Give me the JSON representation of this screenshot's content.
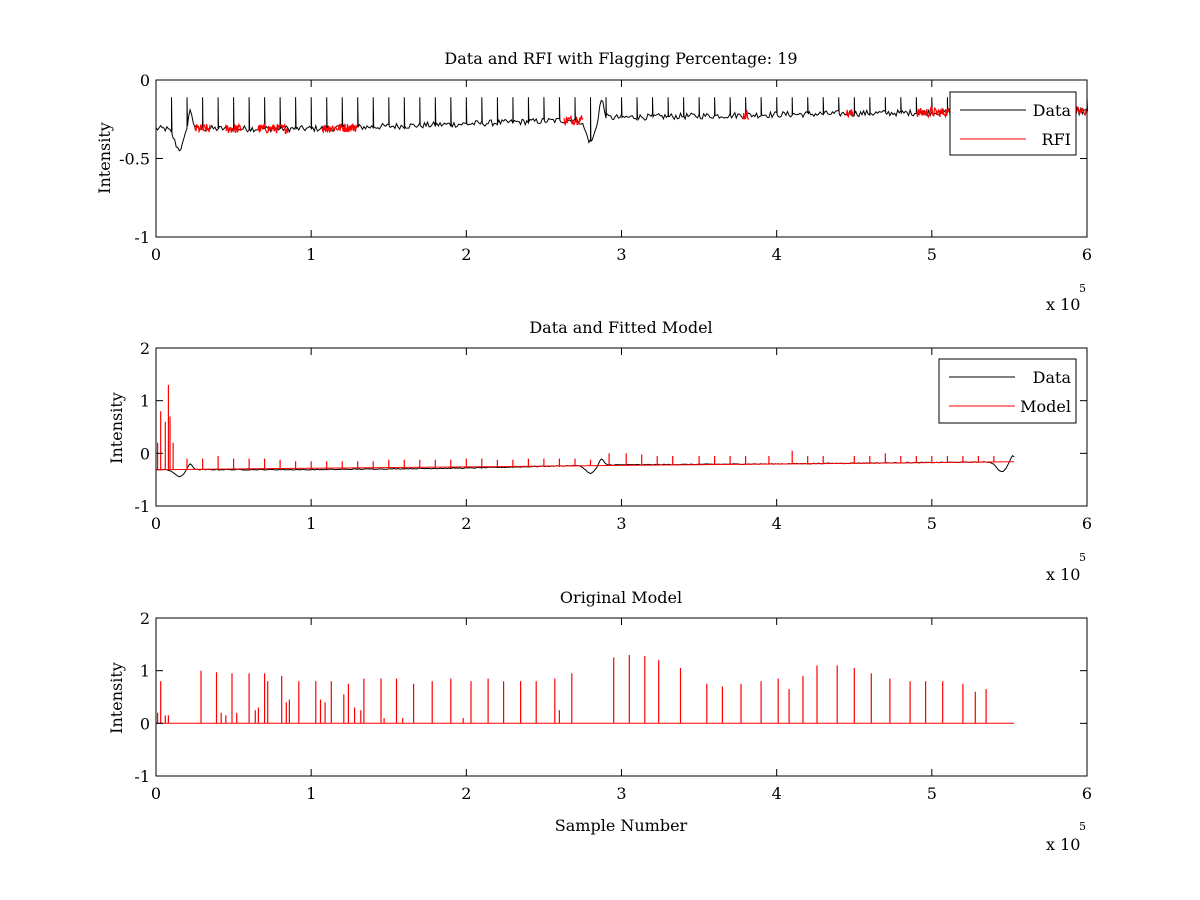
{
  "chart_data": [
    {
      "type": "line",
      "title": "Data and RFI with Flagging Percentage: 19",
      "xlabel": "",
      "ylabel": "Intensity",
      "xlim": [
        0,
        600000
      ],
      "ylim": [
        -1,
        0
      ],
      "xticks": [
        0,
        1,
        2,
        3,
        4,
        5,
        6
      ],
      "xtick_labels": [
        "0",
        "1",
        "2",
        "3",
        "4",
        "5",
        "6"
      ],
      "yticks": [
        -1,
        -0.5,
        0
      ],
      "ytick_labels": [
        "-1",
        "-0.5",
        "0"
      ],
      "x_multiplier_base": "x 10",
      "x_multiplier_exp": "5",
      "legend": {
        "location": "top-right",
        "entries": [
          {
            "label": "Data",
            "color": "#000000"
          },
          {
            "label": "RFI",
            "color": "#ff0000"
          }
        ]
      },
      "series": [
        {
          "name": "Data",
          "color": "#000000",
          "baseline": [
            [
              0,
              -0.31
            ],
            [
              100000,
              -0.31
            ],
            [
              200000,
              -0.28
            ],
            [
              280000,
              -0.25
            ],
            [
              290000,
              -0.24
            ],
            [
              400000,
              -0.22
            ],
            [
              550000,
              -0.2
            ],
            [
              600000,
              -0.2
            ]
          ],
          "dips": [
            {
              "x": 15000,
              "y": -0.44
            },
            {
              "x": 280000,
              "y": -0.39
            }
          ],
          "spike_top": -0.11
        },
        {
          "name": "RFI",
          "color": "#ff0000",
          "flagged_ranges": [
            [
              25000,
              35000
            ],
            [
              45000,
              55000
            ],
            [
              65000,
              85000
            ],
            [
              107000,
              130000
            ],
            [
              263000,
              275000
            ],
            [
              378000,
              382000
            ],
            [
              445000,
              450000
            ],
            [
              490000,
              600000
            ]
          ]
        }
      ]
    },
    {
      "type": "line",
      "title": "Data and Fitted Model",
      "xlabel": "",
      "ylabel": "Intensity",
      "xlim": [
        0,
        600000
      ],
      "ylim": [
        -1,
        2
      ],
      "xticks": [
        0,
        1,
        2,
        3,
        4,
        5,
        6
      ],
      "xtick_labels": [
        "0",
        "1",
        "2",
        "3",
        "4",
        "5",
        "6"
      ],
      "yticks": [
        -1,
        0,
        1,
        2
      ],
      "ytick_labels": [
        "-1",
        "0",
        "1",
        "2"
      ],
      "x_multiplier_base": "x 10",
      "x_multiplier_exp": "5",
      "legend": {
        "location": "top-right",
        "entries": [
          {
            "label": "Data",
            "color": "#000000"
          },
          {
            "label": "Model",
            "color": "#ff0000"
          }
        ]
      },
      "series": [
        {
          "name": "Data",
          "color": "#000000",
          "baseline": [
            [
              0,
              -0.31
            ],
            [
              100000,
              -0.31
            ],
            [
              200000,
              -0.28
            ],
            [
              290000,
              -0.22
            ],
            [
              400000,
              -0.2
            ],
            [
              553000,
              -0.16
            ]
          ],
          "dips": [
            {
              "x": 15000,
              "y": -0.44
            },
            {
              "x": 280000,
              "y": -0.38
            },
            {
              "x": 545000,
              "y": -0.35
            }
          ]
        },
        {
          "name": "Model",
          "color": "#ff0000",
          "peaks": [
            [
              1000,
              0.2
            ],
            [
              3000,
              0.8
            ],
            [
              6000,
              0.6
            ],
            [
              8000,
              1.3
            ],
            [
              9000,
              0.7
            ],
            [
              11000,
              0.2
            ],
            [
              20000,
              -0.1
            ],
            [
              30000,
              -0.1
            ],
            [
              40000,
              -0.05
            ],
            [
              50000,
              -0.1
            ],
            [
              60000,
              -0.1
            ],
            [
              70000,
              -0.1
            ],
            [
              80000,
              -0.12
            ],
            [
              90000,
              -0.15
            ],
            [
              100000,
              -0.15
            ],
            [
              110000,
              -0.15
            ],
            [
              120000,
              -0.15
            ],
            [
              130000,
              -0.15
            ],
            [
              140000,
              -0.15
            ],
            [
              150000,
              -0.12
            ],
            [
              160000,
              -0.12
            ],
            [
              170000,
              -0.12
            ],
            [
              180000,
              -0.12
            ],
            [
              190000,
              -0.12
            ],
            [
              200000,
              -0.1
            ],
            [
              210000,
              -0.1
            ],
            [
              220000,
              -0.12
            ],
            [
              230000,
              -0.12
            ],
            [
              240000,
              -0.1
            ],
            [
              250000,
              -0.1
            ],
            [
              260000,
              -0.1
            ],
            [
              270000,
              -0.1
            ],
            [
              280000,
              -0.12
            ],
            [
              292000,
              0.0
            ],
            [
              303000,
              0.0
            ],
            [
              313000,
              -0.02
            ],
            [
              323000,
              -0.05
            ],
            [
              333000,
              -0.05
            ],
            [
              350000,
              -0.05
            ],
            [
              360000,
              -0.05
            ],
            [
              370000,
              -0.05
            ],
            [
              380000,
              -0.05
            ],
            [
              395000,
              -0.05
            ],
            [
              410000,
              0.05
            ],
            [
              420000,
              -0.05
            ],
            [
              430000,
              -0.05
            ],
            [
              450000,
              -0.05
            ],
            [
              460000,
              -0.05
            ],
            [
              470000,
              0.0
            ],
            [
              480000,
              -0.05
            ],
            [
              490000,
              -0.05
            ],
            [
              500000,
              -0.05
            ],
            [
              510000,
              -0.05
            ],
            [
              520000,
              -0.05
            ],
            [
              530000,
              -0.05
            ],
            [
              540000,
              -0.05
            ]
          ]
        }
      ]
    },
    {
      "type": "line",
      "title": "Original Model",
      "xlabel": "Sample Number",
      "ylabel": "Intensity",
      "xlim": [
        0,
        600000
      ],
      "ylim": [
        -1,
        2
      ],
      "xticks": [
        0,
        1,
        2,
        3,
        4,
        5,
        6
      ],
      "xtick_labels": [
        "0",
        "1",
        "2",
        "3",
        "4",
        "5",
        "6"
      ],
      "yticks": [
        -1,
        0,
        1,
        2
      ],
      "ytick_labels": [
        "-1",
        "0",
        "1",
        "2"
      ],
      "x_multiplier_base": "x 10",
      "x_multiplier_exp": "5",
      "legend": null,
      "series": [
        {
          "name": "",
          "color": "#ff0000",
          "baseline": [
            [
              0,
              0
            ],
            [
              553000,
              0
            ]
          ],
          "peaks": [
            [
              1000,
              0.2
            ],
            [
              3000,
              0.8
            ],
            [
              6000,
              0.15
            ],
            [
              8000,
              0.15
            ],
            [
              29000,
              1.0
            ],
            [
              39000,
              0.97
            ],
            [
              42000,
              0.2
            ],
            [
              45000,
              0.15
            ],
            [
              49000,
              0.95
            ],
            [
              52000,
              0.2
            ],
            [
              60000,
              0.95
            ],
            [
              64000,
              0.25
            ],
            [
              66000,
              0.3
            ],
            [
              70000,
              0.95
            ],
            [
              72000,
              0.8
            ],
            [
              81000,
              0.9
            ],
            [
              84000,
              0.4
            ],
            [
              86000,
              0.45
            ],
            [
              92000,
              0.8
            ],
            [
              103000,
              0.8
            ],
            [
              106000,
              0.45
            ],
            [
              109000,
              0.4
            ],
            [
              113000,
              0.8
            ],
            [
              121000,
              0.55
            ],
            [
              124000,
              0.75
            ],
            [
              128000,
              0.3
            ],
            [
              132000,
              0.25
            ],
            [
              134000,
              0.85
            ],
            [
              145000,
              0.85
            ],
            [
              147000,
              0.1
            ],
            [
              155000,
              0.85
            ],
            [
              159000,
              0.1
            ],
            [
              166000,
              0.75
            ],
            [
              178000,
              0.8
            ],
            [
              190000,
              0.85
            ],
            [
              198000,
              0.1
            ],
            [
              203000,
              0.8
            ],
            [
              214000,
              0.85
            ],
            [
              224000,
              0.8
            ],
            [
              235000,
              0.8
            ],
            [
              245000,
              0.8
            ],
            [
              257000,
              0.85
            ],
            [
              260000,
              0.25
            ],
            [
              268000,
              0.95
            ],
            [
              295000,
              1.25
            ],
            [
              305000,
              1.3
            ],
            [
              315000,
              1.28
            ],
            [
              324000,
              1.2
            ],
            [
              338000,
              1.05
            ],
            [
              355000,
              0.75
            ],
            [
              365000,
              0.7
            ],
            [
              377000,
              0.75
            ],
            [
              390000,
              0.8
            ],
            [
              401000,
              0.85
            ],
            [
              408000,
              0.65
            ],
            [
              417000,
              0.9
            ],
            [
              426000,
              1.1
            ],
            [
              439000,
              1.1
            ],
            [
              450000,
              1.05
            ],
            [
              461000,
              0.95
            ],
            [
              473000,
              0.85
            ],
            [
              486000,
              0.8
            ],
            [
              496000,
              0.8
            ],
            [
              507000,
              0.8
            ],
            [
              520000,
              0.75
            ],
            [
              528000,
              0.6
            ],
            [
              535000,
              0.65
            ]
          ]
        }
      ]
    }
  ]
}
